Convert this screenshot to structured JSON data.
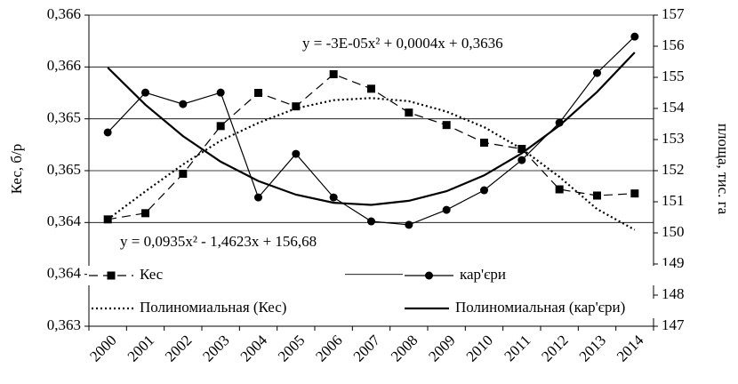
{
  "chart_data": {
    "type": "line",
    "categories": [
      "2000",
      "2001",
      "2002",
      "2003",
      "2004",
      "2005",
      "2006",
      "2007",
      "2008",
      "2009",
      "2010",
      "2011",
      "2012",
      "2013",
      "2014"
    ],
    "series": [
      {
        "name": "Кес",
        "color": "#000000",
        "style": "dashed",
        "marker": "square",
        "values": [
          0.36403,
          0.36409,
          0.36447,
          0.36493,
          0.36525,
          0.36512,
          0.36543,
          0.36529,
          0.36506,
          0.36494,
          0.36477,
          0.36471,
          0.36432,
          0.36426,
          0.36428
        ]
      },
      {
        "name": "кар'єри",
        "color": "#000000",
        "style": "solid",
        "marker": "circle",
        "axis": "y2",
        "values": [
          153.23,
          154.51,
          154.14,
          154.51,
          151.14,
          152.54,
          151.14,
          150.37,
          150.26,
          150.74,
          151.37,
          152.34,
          153.54,
          155.14,
          156.31
        ]
      },
      {
        "name": "Полиномиальная (Кес)",
        "color": "#000000",
        "style": "dotted",
        "values": [
          0.36403,
          0.3643,
          0.36456,
          0.36479,
          0.36496,
          0.3651,
          0.36518,
          0.3652,
          0.36517,
          0.36507,
          0.36492,
          0.36471,
          0.36444,
          0.36413,
          0.36393
        ]
      },
      {
        "name": "Полиномиальная (кар'єри)",
        "color": "#000000",
        "style": "solid",
        "axis": "y2",
        "values": [
          155.31,
          154.12,
          153.11,
          152.29,
          151.67,
          151.23,
          150.97,
          150.9,
          151.03,
          151.34,
          151.85,
          152.56,
          153.45,
          154.53,
          155.8
        ]
      }
    ],
    "ylabel": "Кес, б/р",
    "y2label": "площа, тис. га",
    "ylim": [
      0.363,
      0.366
    ],
    "yticks": [
      {
        "value": 0.363,
        "label": "0,363"
      },
      {
        "value": 0.3635,
        "label": "0,364"
      },
      {
        "value": 0.364,
        "label": "0,364"
      },
      {
        "value": 0.3645,
        "label": "0,365"
      },
      {
        "value": 0.365,
        "label": "0,365"
      },
      {
        "value": 0.3655,
        "label": "0,366"
      },
      {
        "value": 0.366,
        "label": "0,366"
      }
    ],
    "y2lim": [
      147,
      157
    ],
    "y2ticks": [
      147,
      148,
      149,
      150,
      151,
      152,
      153,
      154,
      155,
      156,
      157
    ],
    "annotations": [
      "y = -3E-05x² + 0,0004x + 0,3636",
      "y = 0,0935x² - 1,4623x + 156,68"
    ],
    "grid": true
  }
}
